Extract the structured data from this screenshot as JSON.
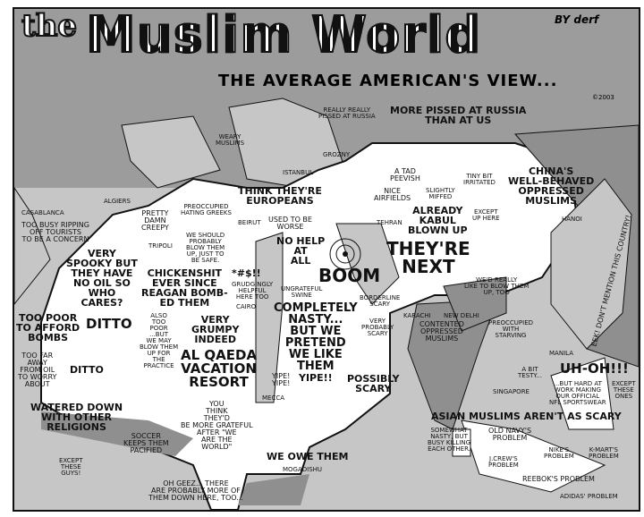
{
  "title": {
    "the": "the",
    "main": "Muslim World",
    "byline": "BY derf",
    "subtitle": "THE AVERAGE AMERICAN'S VIEW...",
    "copyright": "©2003"
  },
  "colors": {
    "sea": "#c6c6c6",
    "land_other": "#8f8f8f",
    "muslim_world": "#ffffff",
    "upper": "#9c9c9c"
  },
  "cities": [
    "CASABLANCA",
    "ALGIERS",
    "TRIPOLI",
    "CAIRO",
    "BEIRUT",
    "ISTANBUL",
    "TEHRAN",
    "GROZNY",
    "KARACHI",
    "NEW DELHI",
    "MECCA",
    "MOGADISHU",
    "SINGAPORE",
    "MANILA",
    "HANOI"
  ],
  "labels": [
    "TOO BUSY RIPPING\nOFF TOURISTS\nTO BE A CONCERN",
    "VERY\nSPOOKY BUT\nTHEY HAVE\nNO OIL SO\nWHO\nCARES?",
    "PRETTY\nDAMN\nCREEPY",
    "CHICKENSHIT\nEVER SINCE\nREAGAN BOMB-\nED THEM",
    "TOO POOR\nTO AFFORD\nBOMBS",
    "DITTO",
    "DITTO",
    "TOO FAR\nAWAY\nFROM OIL\nTO WORRY\nABOUT",
    "ALSO\nTOO\nPOOR\n...BUT\nWE MAY\nBLOW THEM\nUP FOR\nTHE\nPRACTICE",
    "AL QAEDA\nVACATION\nRESORT",
    "VERY\nGRUMPY\nINDEED",
    "WATERED DOWN\nWITH OTHER\nRELIGIONS",
    "EXCEPT\nTHESE\nGUYS!",
    "SOCCER\nKEEPS THEM\nPACIFIED",
    "YOU\nTHINK\nTHEY'D\nBE MORE GRATEFUL\nAFTER \"WE\nARE THE\nWORLD\"",
    "WE OWE THEM",
    "OH GEEZ... THERE\nARE PROBABLY MORE OF\nTHEM DOWN HERE, TOO...",
    "PREOCCUPIED\nHATING GREEKS",
    "WE SHOULD\nPROBABLY\nBLOW THEM\nUP, JUST TO\nBE SAFE.",
    "*#$!!",
    "GRUDGINGLY\nHELPFUL\nHERE TOO",
    "THINK THEY'RE\nEUROPEANS",
    "USED TO BE\nWORSE",
    "NO HELP\nAT\nALL",
    "BOOM",
    "THEY'RE\nNEXT",
    "UNGRATEFUL\nSWINE",
    "COMPLETELY\nNASTY...\nBUT WE\nPRETEND\nWE LIKE\nTHEM",
    "YIPE!\nYIPE!",
    "YIPE!!",
    "POSSIBLY\nSCARY",
    "VERY\nPROBABLY\nSCARY",
    "BORDERLINE\nSCARY",
    "WEARY\nMUSLIMS",
    "REALLY REALLY\nPISSED AT RUSSIA",
    "MORE PISSED AT RUSSIA\nTHAN AT US",
    "A TAD\nPEEVISH",
    "TINY BIT\nIRRITATED",
    "NICE\nAIRFIELDS",
    "SLIGHTLY\nMIFFED",
    "ALREADY\nKABUL\nBLOWN UP",
    "WE'D REALLY\nLIKE TO BLOW THEM\nUP, TOO",
    "EXCEPT\nUP HERE",
    "CHINA'S\nWELL-BEHAVED\nOPPRESSED\nMUSLIMS",
    "CONTENTED\nOPPRESSED\nMUSLIMS",
    "PREOCCUPIED\nWITH\nSTARVING",
    "EEK! DON'T MENTION THIS COUNTRY!",
    "A BIT\nTESTY...",
    "UH-OH!!!",
    "...BUT HARD AT\nWORK MAKING\nOUR OFFICIAL\nNFL SPORTSWEAR",
    "EXCEPT\nTHESE\nONES",
    "ASIAN MUSLIMS AREN'T AS SCARY",
    "OLD NAVY'S\nPROBLEM",
    "SOMEWHAT\nNASTY, BUT\nBUSY KILLING\nEACH OTHER.",
    "J.CREW'S\nPROBLEM",
    "REEBOK'S PROBLEM",
    "NIKE'S\nPROBLEM",
    "K-MART'S\nPROBLEM",
    "ADIDAS' PROBLEM"
  ]
}
